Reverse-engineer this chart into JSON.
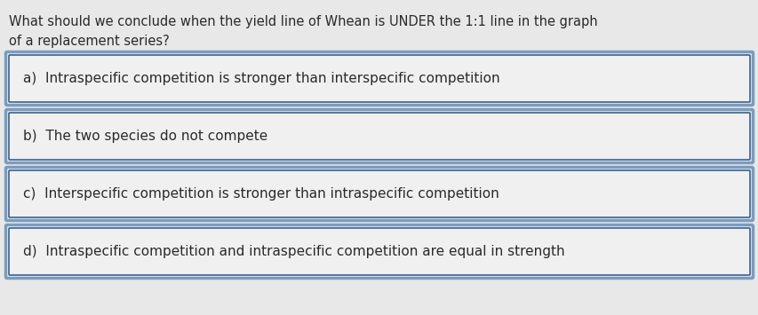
{
  "question_line1": "What should we conclude when the yield line of Whean is UNDER the 1:1 line in the graph",
  "question_line2": "of a replacement series?",
  "options": [
    "a)  Intraspecific competition is stronger than interspecific competition",
    "b)  The two species do not compete",
    "c)  Interspecific competition is stronger than intraspecific competition",
    "d)  Intraspecific competition and intraspecific competition are equal in strength"
  ],
  "bg_color": "#e8e8e8",
  "box_bg_color": "#f0f0f0",
  "box_border_outer": "#7a9cbf",
  "box_border_inner": "#3a6090",
  "question_fontsize": 10.5,
  "option_fontsize": 11.0,
  "text_color": "#2a2a2a",
  "fig_width": 8.54,
  "fig_height": 3.55,
  "dpi": 100
}
